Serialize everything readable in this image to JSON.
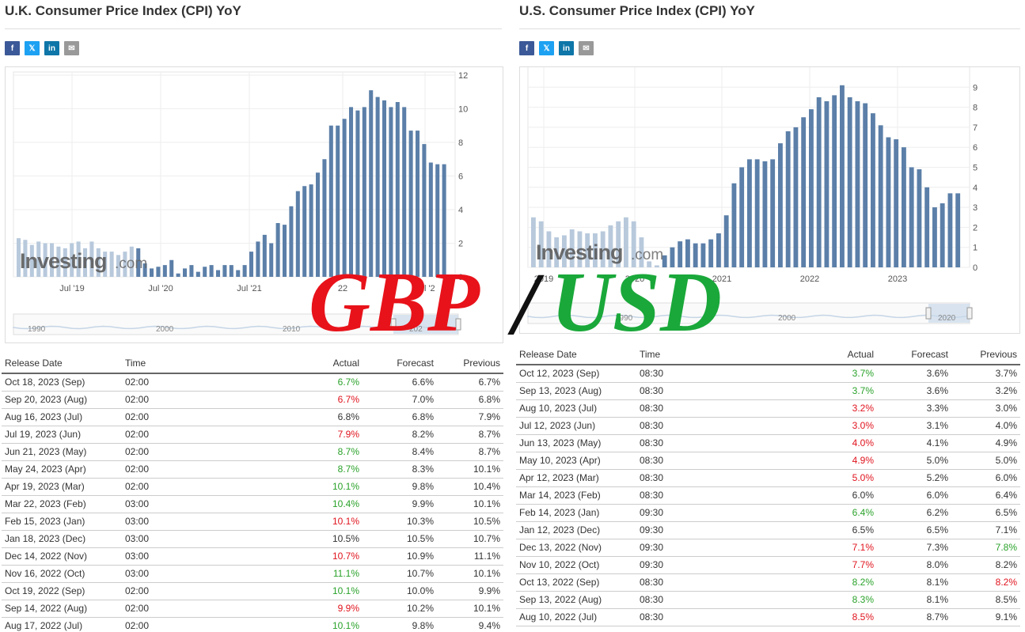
{
  "colors": {
    "bar": "#5b7fa8",
    "bar_faded": "#b8c9dc",
    "positive": "#2aa22a",
    "negative": "#e0141e",
    "overlay_red": "#e8121a",
    "overlay_green": "#1aa83a"
  },
  "overlay": {
    "left": "GBP",
    "slash": "/",
    "right": "USD"
  },
  "uk": {
    "title": "U.K. Consumer Price Index (CPI) YoY",
    "share": [
      "f",
      "𝕏",
      "in",
      "✉"
    ],
    "watermark": "Investing",
    "watermark_suffix": ".com",
    "table_headers": [
      "Release Date",
      "Time",
      "Actual",
      "Forecast",
      "Previous"
    ],
    "rows": [
      {
        "date": "Oct 18, 2023 (Sep)",
        "time": "02:00",
        "actual": "6.7%",
        "forecast": "6.6%",
        "previous": "6.7%",
        "actual_color": "green",
        "previous_color": ""
      },
      {
        "date": "Sep 20, 2023 (Aug)",
        "time": "02:00",
        "actual": "6.7%",
        "forecast": "7.0%",
        "previous": "6.8%",
        "actual_color": "red",
        "previous_color": ""
      },
      {
        "date": "Aug 16, 2023 (Jul)",
        "time": "02:00",
        "actual": "6.8%",
        "forecast": "6.8%",
        "previous": "7.9%",
        "actual_color": "",
        "previous_color": ""
      },
      {
        "date": "Jul 19, 2023 (Jun)",
        "time": "02:00",
        "actual": "7.9%",
        "forecast": "8.2%",
        "previous": "8.7%",
        "actual_color": "red",
        "previous_color": ""
      },
      {
        "date": "Jun 21, 2023 (May)",
        "time": "02:00",
        "actual": "8.7%",
        "forecast": "8.4%",
        "previous": "8.7%",
        "actual_color": "green",
        "previous_color": ""
      },
      {
        "date": "May 24, 2023 (Apr)",
        "time": "02:00",
        "actual": "8.7%",
        "forecast": "8.3%",
        "previous": "10.1%",
        "actual_color": "green",
        "previous_color": ""
      },
      {
        "date": "Apr 19, 2023 (Mar)",
        "time": "02:00",
        "actual": "10.1%",
        "forecast": "9.8%",
        "previous": "10.4%",
        "actual_color": "green",
        "previous_color": ""
      },
      {
        "date": "Mar 22, 2023 (Feb)",
        "time": "03:00",
        "actual": "10.4%",
        "forecast": "9.9%",
        "previous": "10.1%",
        "actual_color": "green",
        "previous_color": ""
      },
      {
        "date": "Feb 15, 2023 (Jan)",
        "time": "03:00",
        "actual": "10.1%",
        "forecast": "10.3%",
        "previous": "10.5%",
        "actual_color": "red",
        "previous_color": ""
      },
      {
        "date": "Jan 18, 2023 (Dec)",
        "time": "03:00",
        "actual": "10.5%",
        "forecast": "10.5%",
        "previous": "10.7%",
        "actual_color": "",
        "previous_color": ""
      },
      {
        "date": "Dec 14, 2022 (Nov)",
        "time": "03:00",
        "actual": "10.7%",
        "forecast": "10.9%",
        "previous": "11.1%",
        "actual_color": "red",
        "previous_color": ""
      },
      {
        "date": "Nov 16, 2022 (Oct)",
        "time": "03:00",
        "actual": "11.1%",
        "forecast": "10.7%",
        "previous": "10.1%",
        "actual_color": "green",
        "previous_color": ""
      },
      {
        "date": "Oct 19, 2022 (Sep)",
        "time": "02:00",
        "actual": "10.1%",
        "forecast": "10.0%",
        "previous": "9.9%",
        "actual_color": "green",
        "previous_color": ""
      },
      {
        "date": "Sep 14, 2022 (Aug)",
        "time": "02:00",
        "actual": "9.9%",
        "forecast": "10.2%",
        "previous": "10.1%",
        "actual_color": "red",
        "previous_color": ""
      },
      {
        "date": "Aug 17, 2022 (Jul)",
        "time": "02:00",
        "actual": "10.1%",
        "forecast": "9.8%",
        "previous": "9.4%",
        "actual_color": "green",
        "previous_color": ""
      }
    ]
  },
  "us": {
    "title": "U.S. Consumer Price Index (CPI) YoY",
    "share": [
      "f",
      "𝕏",
      "in",
      "✉"
    ],
    "watermark": "Investing",
    "watermark_suffix": ".com",
    "table_headers": [
      "Release Date",
      "Time",
      "Actual",
      "Forecast",
      "Previous"
    ],
    "rows": [
      {
        "date": "Oct 12, 2023 (Sep)",
        "time": "08:30",
        "actual": "3.7%",
        "forecast": "3.6%",
        "previous": "3.7%",
        "actual_color": "green",
        "previous_color": ""
      },
      {
        "date": "Sep 13, 2023 (Aug)",
        "time": "08:30",
        "actual": "3.7%",
        "forecast": "3.6%",
        "previous": "3.2%",
        "actual_color": "green",
        "previous_color": ""
      },
      {
        "date": "Aug 10, 2023 (Jul)",
        "time": "08:30",
        "actual": "3.2%",
        "forecast": "3.3%",
        "previous": "3.0%",
        "actual_color": "red",
        "previous_color": ""
      },
      {
        "date": "Jul 12, 2023 (Jun)",
        "time": "08:30",
        "actual": "3.0%",
        "forecast": "3.1%",
        "previous": "4.0%",
        "actual_color": "red",
        "previous_color": ""
      },
      {
        "date": "Jun 13, 2023 (May)",
        "time": "08:30",
        "actual": "4.0%",
        "forecast": "4.1%",
        "previous": "4.9%",
        "actual_color": "red",
        "previous_color": ""
      },
      {
        "date": "May 10, 2023 (Apr)",
        "time": "08:30",
        "actual": "4.9%",
        "forecast": "5.0%",
        "previous": "5.0%",
        "actual_color": "red",
        "previous_color": ""
      },
      {
        "date": "Apr 12, 2023 (Mar)",
        "time": "08:30",
        "actual": "5.0%",
        "forecast": "5.2%",
        "previous": "6.0%",
        "actual_color": "red",
        "previous_color": ""
      },
      {
        "date": "Mar 14, 2023 (Feb)",
        "time": "08:30",
        "actual": "6.0%",
        "forecast": "6.0%",
        "previous": "6.4%",
        "actual_color": "",
        "previous_color": ""
      },
      {
        "date": "Feb 14, 2023 (Jan)",
        "time": "09:30",
        "actual": "6.4%",
        "forecast": "6.2%",
        "previous": "6.5%",
        "actual_color": "green",
        "previous_color": ""
      },
      {
        "date": "Jan 12, 2023 (Dec)",
        "time": "09:30",
        "actual": "6.5%",
        "forecast": "6.5%",
        "previous": "7.1%",
        "actual_color": "",
        "previous_color": ""
      },
      {
        "date": "Dec 13, 2022 (Nov)",
        "time": "09:30",
        "actual": "7.1%",
        "forecast": "7.3%",
        "previous": "7.8%",
        "actual_color": "red",
        "previous_color": "green"
      },
      {
        "date": "Nov 10, 2022 (Oct)",
        "time": "09:30",
        "actual": "7.7%",
        "forecast": "8.0%",
        "previous": "8.2%",
        "actual_color": "red",
        "previous_color": ""
      },
      {
        "date": "Oct 13, 2022 (Sep)",
        "time": "08:30",
        "actual": "8.2%",
        "forecast": "8.1%",
        "previous": "8.2%",
        "actual_color": "green",
        "previous_color": "red"
      },
      {
        "date": "Sep 13, 2022 (Aug)",
        "time": "08:30",
        "actual": "8.3%",
        "forecast": "8.1%",
        "previous": "8.5%",
        "actual_color": "green",
        "previous_color": ""
      },
      {
        "date": "Aug 10, 2022 (Jul)",
        "time": "08:30",
        "actual": "8.5%",
        "forecast": "8.7%",
        "previous": "9.1%",
        "actual_color": "red",
        "previous_color": ""
      }
    ]
  },
  "chart_data": [
    {
      "type": "bar",
      "ylim": [
        0,
        12
      ],
      "yticks": [
        0,
        2,
        4,
        6,
        8,
        10,
        12
      ],
      "x_labels": [
        "Jul '19",
        "Jul '20",
        "Jul '21",
        "22",
        "Jul '2"
      ],
      "navigator_labels": [
        "1990",
        "2000",
        "2010",
        "202"
      ],
      "series": [
        {
          "values": [
            2.3,
            2.2,
            1.9,
            2.1,
            2.0,
            2.0,
            1.8,
            1.7,
            2.0,
            2.1,
            1.7,
            2.1,
            1.7,
            1.5,
            1.5,
            1.3,
            1.5,
            1.8,
            1.7,
            0.8,
            0.5,
            0.6,
            0.7,
            1.0,
            0.2,
            0.5,
            0.7,
            0.3,
            0.6,
            0.7,
            0.4,
            0.7,
            0.7,
            0.4,
            0.7,
            1.5,
            2.1,
            2.5,
            2.0,
            3.2,
            3.1,
            4.2,
            5.1,
            5.4,
            5.5,
            6.2,
            7.0,
            9.0,
            9.0,
            9.4,
            10.1,
            9.9,
            10.1,
            11.1,
            10.7,
            10.5,
            10.1,
            10.4,
            10.1,
            8.7,
            8.7,
            7.9,
            6.8,
            6.7,
            6.7
          ]
        }
      ]
    },
    {
      "type": "bar",
      "ylim": [
        0,
        10
      ],
      "yticks": [
        0,
        1,
        2,
        3,
        4,
        5,
        6,
        7,
        8,
        9
      ],
      "x_labels": [
        "2019",
        "2020",
        "2021",
        "2022",
        "2023"
      ],
      "navigator_labels": [
        "1990",
        "2000",
        "2020"
      ],
      "series": [
        {
          "values": [
            2.5,
            2.3,
            1.8,
            1.5,
            1.6,
            1.9,
            1.8,
            1.7,
            1.7,
            1.8,
            2.1,
            2.3,
            2.5,
            2.3,
            1.5,
            0.3,
            0.1,
            0.6,
            1.0,
            1.3,
            1.4,
            1.2,
            1.2,
            1.4,
            1.7,
            2.6,
            4.2,
            5.0,
            5.4,
            5.4,
            5.3,
            5.4,
            6.2,
            6.8,
            7.0,
            7.5,
            7.9,
            8.5,
            8.3,
            8.6,
            9.1,
            8.5,
            8.3,
            8.2,
            7.7,
            7.1,
            6.5,
            6.4,
            6.0,
            5.0,
            4.9,
            4.0,
            3.0,
            3.2,
            3.7,
            3.7
          ]
        }
      ]
    }
  ]
}
